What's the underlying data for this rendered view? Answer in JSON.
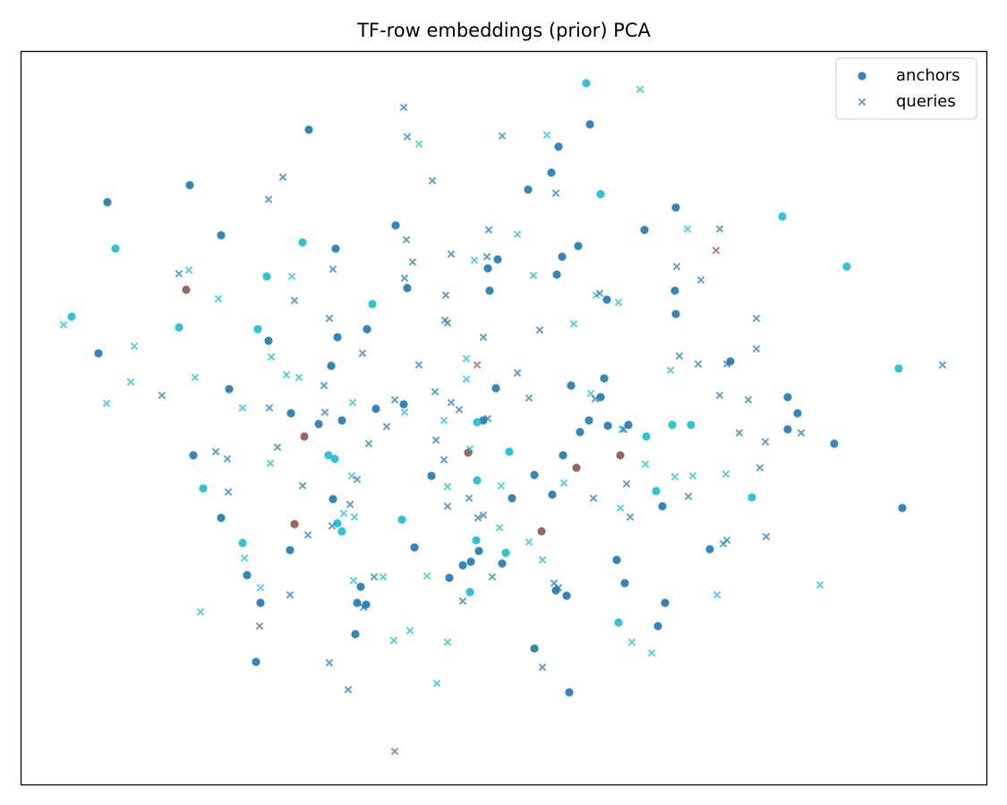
{
  "chart_data": {
    "type": "scatter",
    "title": "TF-row embeddings (prior) PCA",
    "xlim": [
      23,
      1103
    ],
    "ylim": [
      878,
      57
    ],
    "legend": "upper right",
    "series": [
      {
        "name": "anchors",
        "marker": "o",
        "color": "#1f77b4",
        "x": [
          655,
          659,
          345,
          624,
          616,
          212,
          590,
          671,
          120,
          755,
          874,
          247,
          720,
          338,
          375,
          129,
          442,
          646,
          628,
          556,
          545,
          946,
          622,
          298,
          208,
          455,
          547,
          754,
          678,
          416,
          80,
          755,
          200,
          288,
          410,
          300,
          377,
          110,
          816,
          370,
          1004,
          675,
          256,
          554,
          638,
          671,
          880,
          451,
          420,
          325,
          891,
          382,
          356,
          540,
          533,
          658,
          679,
          702,
          751,
          772,
          880,
          648,
          340,
          722,
          932,
          523,
          569,
          216,
          367,
          374,
          629,
          693,
          644,
          597,
          482,
          533,
          227,
          617,
          733,
          572,
          372,
          840,
          740,
          1008,
          247,
          449,
          329,
          377,
          382,
          605,
          271,
          463,
          532,
          324,
          793,
          565,
          535,
          561,
          517,
          526,
          689,
          276,
          502,
          403,
          698,
          621,
          633,
          525,
          291,
          399,
          409,
          743,
          691,
          735,
          397,
          597,
          286,
          636
        ],
        "y": [
          93,
          139,
          145,
          164,
          193,
          207,
          212,
          217,
          226,
          232,
          242,
          263,
          257,
          271,
          278,
          278,
          252,
          275,
          287,
          290,
          300,
          298,
          307,
          309,
          324,
          322,
          325,
          325,
          335,
          340,
          354,
          351,
          366,
          368,
          368,
          381,
          377,
          395,
          404,
          409,
          412,
          423,
          435,
          434,
          431,
          444,
          444,
          452,
          457,
          462,
          462,
          470,
          474,
          470,
          472,
          470,
          476,
          475,
          475,
          475,
          480,
          483,
          488,
          488,
          496,
          506,
          505,
          509,
          509,
          513,
          509,
          509,
          523,
          531,
          532,
          537,
          546,
          553,
          549,
          557,
          558,
          556,
          566,
          568,
          579,
          581,
          586,
          585,
          594,
          594,
          607,
          612,
          604,
          615,
          614,
          618,
          616,
          630,
          632,
          628,
          626,
          643,
          646,
          656,
          652,
          660,
          666,
          662,
          674,
          674,
          676,
          674,
          696,
          700,
          709,
          725,
          740,
          774
        ],
        "colors": [
          "#17becf",
          "#1f77b4",
          "#1f77b4",
          "#1f77b4",
          "#1f77b4",
          "#1f77b4",
          "#1f77b4",
          "#17becf",
          "#1f77b4",
          "#1f77b4",
          "#17becf",
          "#1f77b4",
          "#1f77b4",
          "#17becf",
          "#1f77b4",
          "#17becf",
          "#1f77b4",
          "#1f77b4",
          "#1f77b4",
          "#1f77b4",
          "#1f77b4",
          "#17becf",
          "#1f77b4",
          "#17becf",
          "#8c564b",
          "#1f77b4",
          "#1f77b4",
          "#1f77b4",
          "#1f77b4",
          "#17becf",
          "#17becf",
          "#1f77b4",
          "#17becf",
          "#17becf",
          "#1f77b4",
          "#1f77b4",
          "#1f77b4",
          "#1f77b4",
          "#1f77b4",
          "#1f77b4",
          "#17becf",
          "#1f77b4",
          "#1f77b4",
          "#1f77b4",
          "#1f77b4",
          "#1f77b4",
          "#1f77b4",
          "#1f77b4",
          "#1f77b4",
          "#1f77b4",
          "#1f77b4",
          "#1f77b4",
          "#1f77b4",
          "#1f77b4",
          "#17becf",
          "#1f77b4",
          "#1f77b4",
          "#1f77b4",
          "#17becf",
          "#17becf",
          "#1f77b4",
          "#1f77b4",
          "#8c564b",
          "#17becf",
          "#1f77b4",
          "#8c564b",
          "#17becf",
          "#1f77b4",
          "#17becf",
          "#17becf",
          "#1f77b4",
          "#8c564b",
          "#8c564b",
          "#1f77b4",
          "#1f77b4",
          "#17becf",
          "#17becf",
          "#1f77b4",
          "#17becf",
          "#1f77b4",
          "#1f77b4",
          "#17becf",
          "#1f77b4",
          "#1f77b4",
          "#1f77b4",
          "#17becf",
          "#8c564b",
          "#17becf",
          "#17becf",
          "#8c564b",
          "#17becf",
          "#1f77b4",
          "#17becf",
          "#1f77b4",
          "#1f77b4",
          "#17becf",
          "#1f77b4",
          "#1f77b4",
          "#1f77b4",
          "#1f77b4",
          "#1f77b4",
          "#1f77b4",
          "#1f77b4",
          "#1f77b4",
          "#1f77b4",
          "#1f77b4",
          "#1f77b4",
          "#17becf",
          "#1f77b4",
          "#1f77b4",
          "#1f77b4",
          "#1f77b4",
          "#17becf",
          "#1f77b4",
          "#1f77b4",
          "#1f77b4",
          "#1f77b4",
          "#1f77b4"
        ]
      },
      {
        "name": "queries",
        "marker": "x",
        "color": "#1f77b4",
        "x": [
          715,
          451,
          455,
          468,
          561,
          611,
          316,
          483,
          621,
          300,
          546,
          578,
          768,
          804,
          454,
          800,
          504,
          544,
          530,
          461,
          200,
          211,
          372,
          326,
          452,
          596,
          756,
          783,
          498,
          666,
          670,
          691,
          244,
          329,
          368,
          497,
          845,
          71,
          500,
          641,
          603,
          540,
          150,
          303,
          405,
          759,
          780,
          812,
          845,
          1053,
          146,
          218,
          320,
          334,
          468,
          521,
          533,
          578,
          749,
          181,
          119,
          362,
          486,
          591,
          660,
          665,
          271,
          301,
          394,
          441,
          504,
          521,
          513,
          452,
          363,
          545,
          496,
          836,
          804,
          432,
          826,
          895,
          855,
          695,
          697,
          487,
          412,
          310,
          241,
          254,
          496,
          525,
          302,
          721,
          849,
          811,
          754,
          630,
          700,
          774,
          393,
          399,
          338,
          500,
          560,
          255,
          524,
          663,
          769,
          391,
          384,
          396,
          500,
          693,
          704,
          540,
          534,
          558,
          371,
          344,
          591,
          812,
          808,
          856,
          273,
          606,
          418,
          428,
          477,
          550,
          291,
          395,
          619,
          624,
          916,
          324,
          801,
          406,
          517,
          224,
          290,
          458,
          440,
          500,
          706,
          728,
          368,
          488,
          606,
          389,
          441
        ],
        "y": [
          100,
          120,
          153,
          161,
          152,
          151,
          198,
          202,
          216,
          223,
          257,
          262,
          256,
          256,
          268,
          280,
          284,
          287,
          291,
          293,
          306,
          302,
          301,
          309,
          311,
          308,
          298,
          313,
          330,
          330,
          328,
          338,
          334,
          336,
          356,
          358,
          356,
          363,
          361,
          362,
          369,
          377,
          387,
          399,
          395,
          398,
          407,
          407,
          390,
          408,
          427,
          422,
          419,
          422,
          408,
          401,
          408,
          417,
          414,
          442,
          451,
          431,
          438,
          445,
          440,
          446,
          456,
          456,
          450,
          447,
          450,
          424,
          458,
          461,
          461,
          468,
          470,
          447,
          442,
          477,
          484,
          484,
          494,
          480,
          480,
          492,
          496,
          500,
          505,
          513,
          514,
          502,
          518,
          519,
          523,
          530,
          533,
          540,
          541,
          532,
          532,
          536,
          543,
          544,
          543,
          550,
          557,
          557,
          555,
          564,
          574,
          578,
          566,
          568,
          578,
          576,
          579,
          590,
          588,
          598,
          606,
          604,
          608,
          600,
          624,
          626,
          645,
          645,
          644,
          645,
          657,
          649,
          652,
          657,
          654,
          665,
          665,
          679,
          672,
          684,
          700,
          705,
          716,
          718,
          718,
          730,
          741,
          764,
          746,
          771,
          840
        ],
        "colors": [
          "#17becf",
          "#1f77b4",
          "#1f77b4",
          "#17becf",
          "#1f77b4",
          "#17becf",
          "#1f77b4",
          "#1f77b4",
          "#1f77b4",
          "#1f77b4",
          "#1f77b4",
          "#17becf",
          "#17becf",
          "#1f77b4",
          "#1f77b4",
          "#8c564b",
          "#1f77b4",
          "#1f77b4",
          "#17becf",
          "#1f77b4",
          "#1f77b4",
          "#17becf",
          "#1f77b4",
          "#17becf",
          "#1f77b4",
          "#17becf",
          "#1f77b4",
          "#1f77b4",
          "#1f77b4",
          "#17becf",
          "#1f77b4",
          "#17becf",
          "#17becf",
          "#1f77b4",
          "#1f77b4",
          "#1f77b4",
          "#1f77b4",
          "#17becf",
          "#1f77b4",
          "#17becf",
          "#1f77b4",
          "#1f77b4",
          "#17becf",
          "#17becf",
          "#1f77b4",
          "#1f77b4",
          "#1f77b4",
          "#1f77b4",
          "#1f77b4",
          "#1f77b4",
          "#17becf",
          "#17becf",
          "#17becf",
          "#17becf",
          "#1f77b4",
          "#17becf",
          "#8c564b",
          "#1f77b4",
          "#17becf",
          "#1f77b4",
          "#17becf",
          "#1f77b4",
          "#1f77b4",
          "#1f77b4",
          "#17becf",
          "#1f77b4",
          "#17becf",
          "#1f77b4",
          "#17becf",
          "#1f77b4",
          "#1f77b4",
          "#17becf",
          "#1f77b4",
          "#17becf",
          "#1f77b4",
          "#1f77b4",
          "#17becf",
          "#1f77b4",
          "#1f77b4",
          "#1f77b4",
          "#1f77b4",
          "#1f77b4",
          "#1f77b4",
          "#17becf",
          "#1f77b4",
          "#1f77b4",
          "#1f77b4",
          "#1f77b4",
          "#1f77b4",
          "#1f77b4",
          "#1f77b4",
          "#17becf",
          "#17becf",
          "#17becf",
          "#1f77b4",
          "#17becf",
          "#17becf",
          "#17becf",
          "#1f77b4",
          "#17becf",
          "#17becf",
          "#1f77b4",
          "#1f77b4",
          "#17becf",
          "#17becf",
          "#1f77b4",
          "#1f77b4",
          "#1f77b4",
          "#1f77b4",
          "#1f77b4",
          "#17becf",
          "#17becf",
          "#1f77b4",
          "#17becf",
          "#1f77b4",
          "#1f77b4",
          "#1f77b4",
          "#17becf",
          "#1f77b4",
          "#1f77b4",
          "#17becf",
          "#1f77b4",
          "#1f77b4",
          "#1f77b4",
          "#17becf",
          "#17becf",
          "#1f77b4",
          "#17becf",
          "#17becf",
          "#1f77b4",
          "#17becf",
          "#17becf",
          "#1f77b4",
          "#1f77b4",
          "#17becf",
          "#1f77b4",
          "#17becf",
          "#1f77b4",
          "#1f77b4",
          "#17becf",
          "#8c564b",
          "#17becf",
          "#17becf",
          "#17becf",
          "#17becf",
          "#17becf",
          "#1f77b4",
          "#17becf",
          "#1f77b4",
          "#1f77b4",
          "#8c564b"
        ]
      }
    ]
  }
}
